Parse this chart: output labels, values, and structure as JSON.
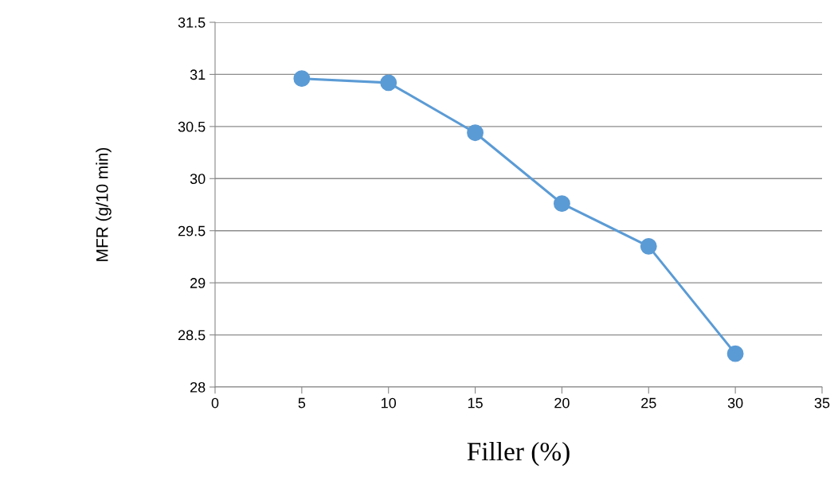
{
  "chart_data": {
    "type": "line",
    "xlabel": "Filler (%)",
    "ylabel": "MFR (g/10 min)",
    "x": [
      5,
      10,
      15,
      20,
      25,
      30
    ],
    "series": [
      {
        "color": "#5b9bd5",
        "values": [
          30.96,
          30.92,
          30.44,
          29.76,
          29.35,
          28.32
        ]
      }
    ],
    "xlim": [
      0,
      35
    ],
    "xticks": [
      0,
      5,
      10,
      15,
      20,
      25,
      30,
      35
    ],
    "ylim": [
      28,
      31.5
    ],
    "yticks": [
      28,
      28.5,
      29,
      29.5,
      30,
      30.5,
      31,
      31.5
    ],
    "grid": "y",
    "marker": "circle",
    "line_style": "solid",
    "legend": false
  }
}
